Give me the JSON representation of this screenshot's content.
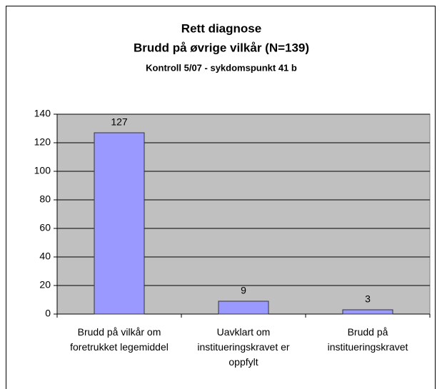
{
  "chart_data": {
    "type": "bar",
    "title": "Rett diagnose",
    "subtitle": "Brudd på øvrige vilkår (N=139)",
    "caption": "Kontroll 5/07 - sykdomspunkt 41 b",
    "categories": [
      "Brudd på vilkår om foretrukket legemiddel",
      "Uavklart om institueringskravet er oppfylt",
      "Brudd på institueringskravet"
    ],
    "values": [
      127,
      9,
      3
    ],
    "color": "#9999ff",
    "ylim": [
      0,
      140
    ],
    "yticks": [
      0,
      20,
      40,
      60,
      80,
      100,
      120,
      140
    ],
    "grid": true
  }
}
